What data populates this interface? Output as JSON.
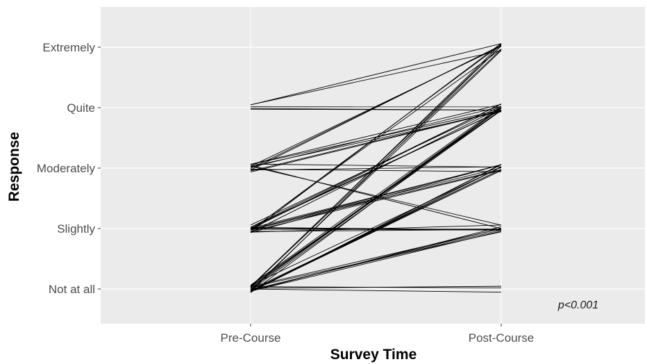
{
  "chart_data": {
    "type": "line",
    "title": "",
    "xlabel": "Survey Time",
    "ylabel": "Response",
    "x_categories": [
      "Pre-Course",
      "Post-Course"
    ],
    "y_categories": [
      "Not at all",
      "Slightly",
      "Moderately",
      "Quite",
      "Extremely"
    ],
    "annotation": "p<0.001",
    "grid": true,
    "legend": "none",
    "colors": {
      "panel": "#ebebeb",
      "grid": "#ffffff",
      "line": "#000000",
      "tick": "#4d4d4d"
    },
    "pairs": [
      {
        "pre": "Not at all",
        "post": "Extremely",
        "n": 5
      },
      {
        "pre": "Not at all",
        "post": "Quite",
        "n": 8
      },
      {
        "pre": "Not at all",
        "post": "Moderately",
        "n": 8
      },
      {
        "pre": "Not at all",
        "post": "Slightly",
        "n": 6
      },
      {
        "pre": "Not at all",
        "post": "Not at all",
        "n": 3
      },
      {
        "pre": "Slightly",
        "post": "Extremely",
        "n": 3
      },
      {
        "pre": "Slightly",
        "post": "Quite",
        "n": 6
      },
      {
        "pre": "Slightly",
        "post": "Moderately",
        "n": 6
      },
      {
        "pre": "Slightly",
        "post": "Slightly",
        "n": 6
      },
      {
        "pre": "Moderately",
        "post": "Extremely",
        "n": 3
      },
      {
        "pre": "Moderately",
        "post": "Quite",
        "n": 6
      },
      {
        "pre": "Moderately",
        "post": "Moderately",
        "n": 3
      },
      {
        "pre": "Moderately",
        "post": "Slightly",
        "n": 2
      },
      {
        "pre": "Quite",
        "post": "Extremely",
        "n": 2
      },
      {
        "pre": "Quite",
        "post": "Quite",
        "n": 3
      }
    ]
  }
}
